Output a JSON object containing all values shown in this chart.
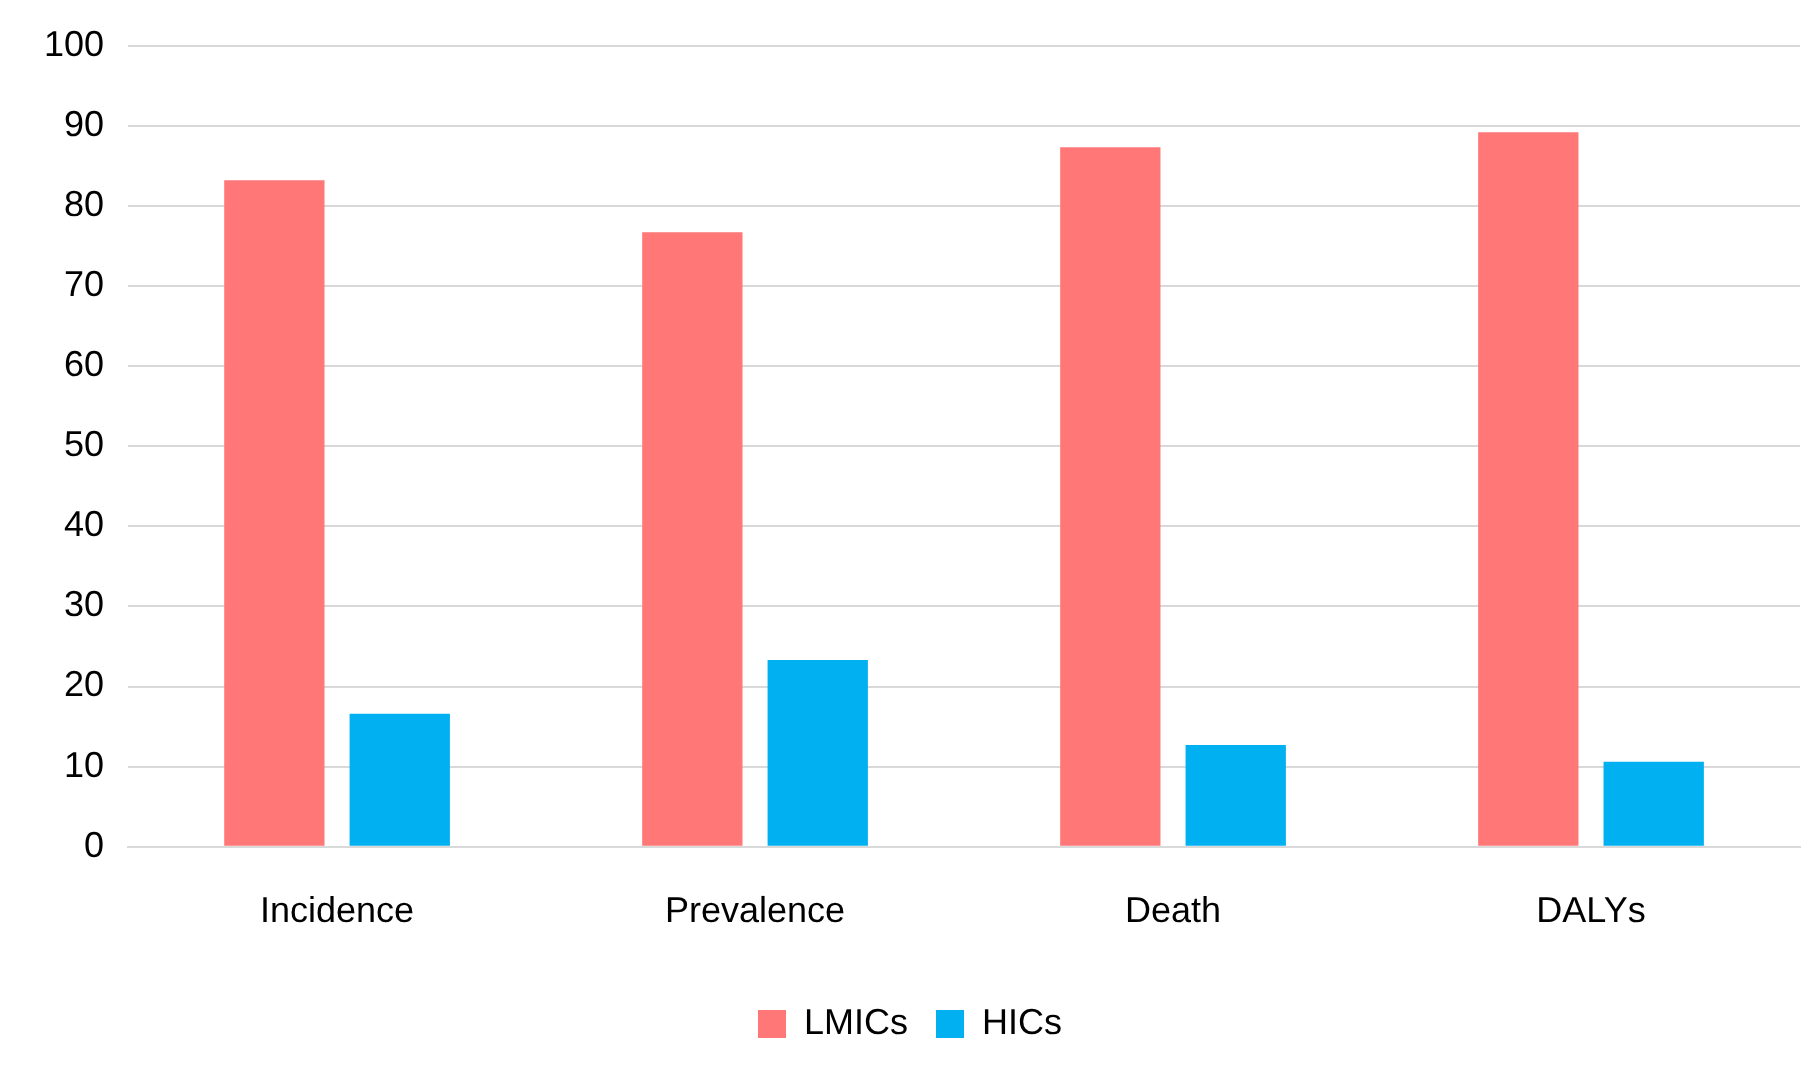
{
  "chart_data": {
    "type": "bar",
    "categories": [
      "Incidence",
      "Prevalence",
      "Death",
      "DALYs"
    ],
    "series": [
      {
        "name": "LMICs",
        "color": "#ff7777",
        "values": [
          83.2,
          76.7,
          87.3,
          89.2
        ]
      },
      {
        "name": "HICs",
        "color": "#00b0f0",
        "values": [
          16.6,
          23.3,
          12.7,
          10.6
        ]
      }
    ],
    "ylim": [
      0,
      100
    ],
    "yticks": [
      0,
      10,
      20,
      30,
      40,
      50,
      60,
      70,
      80,
      90,
      100
    ],
    "grid": "y",
    "legend": "bottom"
  }
}
